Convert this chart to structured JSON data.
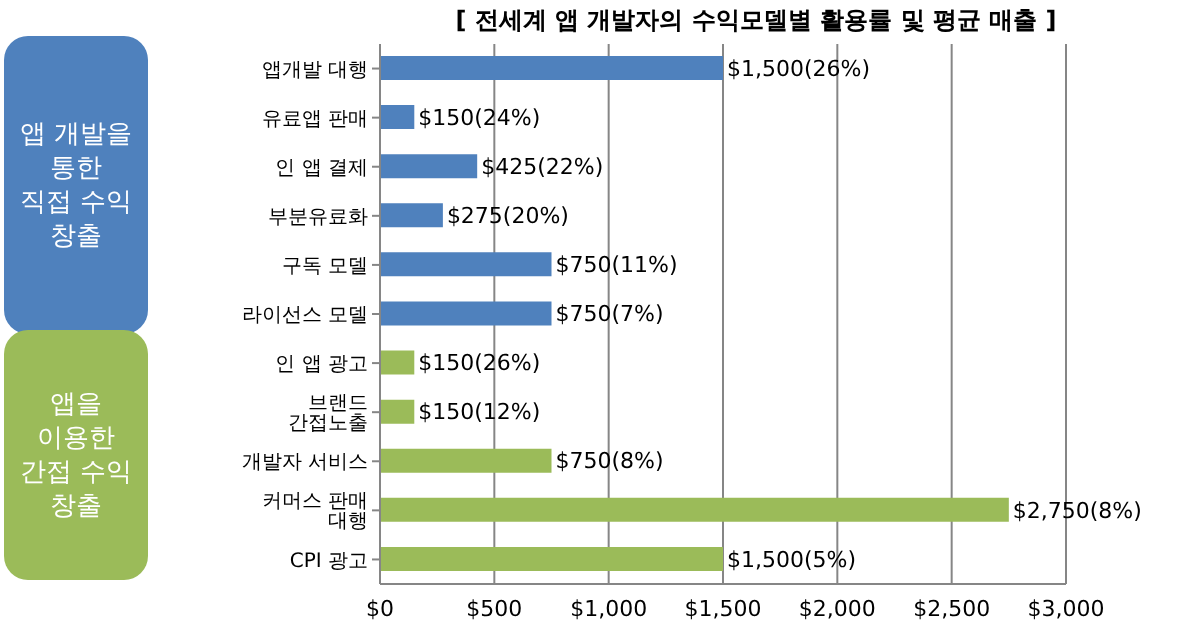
{
  "chart_data": {
    "type": "bar",
    "orientation": "horizontal",
    "title": "[ 전세계 앱 개발자의 수익모델별 활용률 및 평균 매출 ]",
    "categories": [
      "앱개발 대행",
      "유료앱 판매",
      "인 앱 결제",
      "부분유료화",
      "구독 모델",
      "라이선스 모델",
      "인 앱 광고",
      "브랜드 간접노출",
      "개발자 서비스",
      "커머스 판매 대행",
      "CPI 광고"
    ],
    "values": [
      1500,
      150,
      425,
      275,
      750,
      750,
      150,
      150,
      750,
      2750,
      1500
    ],
    "colors": [
      "#4f81bd",
      "#4f81bd",
      "#4f81bd",
      "#4f81bd",
      "#4f81bd",
      "#4f81bd",
      "#9bbb59",
      "#9bbb59",
      "#9bbb59",
      "#9bbb59",
      "#9bbb59"
    ],
    "value_labels": [
      "$1,500(26%)",
      "$150(24%)",
      "$425(22%)",
      "$275(20%)",
      "$750(11%)",
      "$750(7%)",
      "$150(26%)",
      "$150(12%)",
      "$750(8%)",
      "$2,750(8%)",
      "$1,500(5%)"
    ],
    "xlim": [
      0,
      3000
    ],
    "xticks": [
      {
        "value": 0,
        "label": "$0"
      },
      {
        "value": 500,
        "label": "$500"
      },
      {
        "value": 1000,
        "label": "$1,000"
      },
      {
        "value": 1500,
        "label": "$1,500"
      },
      {
        "value": 2000,
        "label": "$2,000"
      },
      {
        "value": 2500,
        "label": "$2,500"
      },
      {
        "value": 3000,
        "label": "$3,000"
      }
    ],
    "grid": "x",
    "legend": false,
    "annotations": [
      "앱 개발을\n통한\n직접 수익\n창출",
      "앱을\n이용한\n간접 수익\n창출"
    ]
  }
}
